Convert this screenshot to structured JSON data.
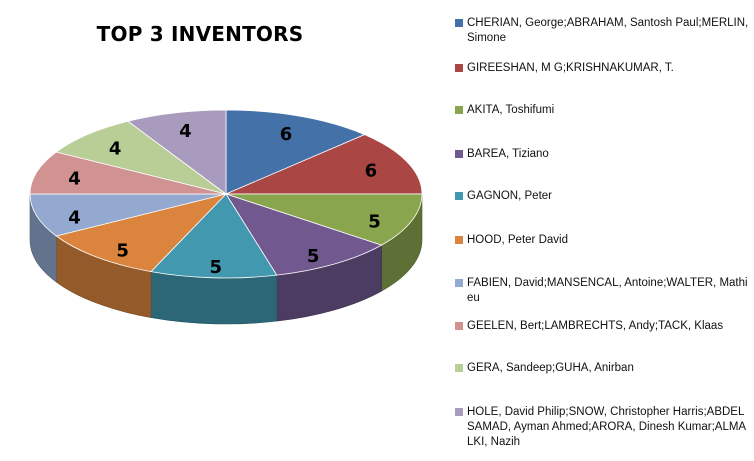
{
  "chart_data": {
    "type": "pie",
    "title": "TOP 3 INVENTORS",
    "legend_position": "right",
    "three_d": true,
    "categories": [
      "CHERIAN, George;ABRAHAM, Santosh Paul;MERLIN, Simone",
      "GIREESHAN,  M G;KRISHNAKUMAR,  T.",
      "AKITA, Toshifumi",
      "BAREA, Tiziano",
      "GAGNON, Peter",
      "HOOD, Peter David",
      "FABIEN, David;MANSENCAL,  Antoine;WALTER, Mathieu",
      "GEELEN,  Bert;LAMBRECHTS, Andy;TACK, Klaas",
      "GERA, Sandeep;GUHA,  Anirban",
      "HOLE, David Philip;SNOW,  Christopher Harris;ABDEL SAMAD,  Ayman Ahmed;ARORA, Dinesh Kumar;ALMALKI, Nazih"
    ],
    "values": [
      6,
      6,
      5,
      5,
      5,
      5,
      4,
      4,
      4,
      4
    ],
    "colors": [
      "#4472A8",
      "#AA4643",
      "#89A54E",
      "#71588F",
      "#4198AF",
      "#DB843D",
      "#93A9CF",
      "#D19392",
      "#B9CD96",
      "#A99BBD"
    ]
  }
}
